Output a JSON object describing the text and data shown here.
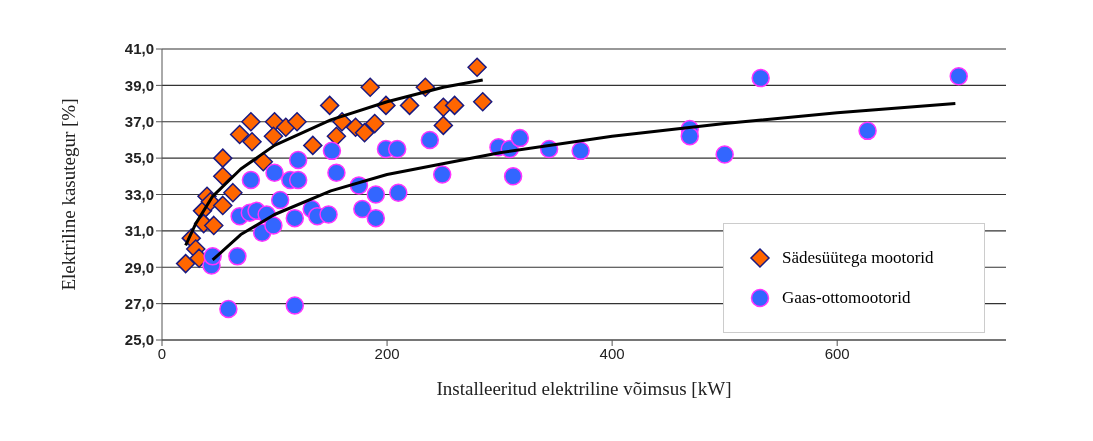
{
  "chart_data": {
    "type": "scatter",
    "xlabel": "Installeeritud elektriline võimsus [kW]",
    "ylabel": "Elektriline kasutegur [%]",
    "xlim": [
      0,
      750
    ],
    "xticks": [
      0,
      200,
      400,
      600
    ],
    "ylim": [
      25,
      41
    ],
    "yticks": [
      {
        "value": 25,
        "label": "25,0"
      },
      {
        "value": 27,
        "label": "27,0"
      },
      {
        "value": 29,
        "label": "29,0"
      },
      {
        "value": 31,
        "label": "31,0"
      },
      {
        "value": 33,
        "label": "33,0"
      },
      {
        "value": 35,
        "label": "35,0"
      },
      {
        "value": 37,
        "label": "37,0"
      },
      {
        "value": 39,
        "label": "39,0"
      },
      {
        "value": 41,
        "label": "41,0"
      }
    ],
    "grid": "y",
    "legend": "bottom right",
    "series": [
      {
        "name": "Sädesüütega mootorid",
        "color": "#ff6600",
        "marker": "diamond",
        "x": [
          21,
          26,
          30,
          33,
          36,
          40,
          37,
          46,
          43,
          54,
          54,
          54,
          63,
          69,
          79,
          80,
          90,
          100,
          99,
          110,
          120,
          134,
          149,
          155,
          160,
          172,
          180,
          189,
          185,
          199,
          220,
          234,
          250,
          260,
          250,
          280,
          285
        ],
        "values": [
          29.2,
          30.6,
          30.0,
          29.5,
          32.1,
          32.9,
          31.4,
          31.3,
          32.6,
          34.0,
          35.0,
          32.4,
          33.1,
          36.3,
          37.0,
          35.9,
          34.8,
          37.0,
          36.2,
          36.7,
          37.0,
          35.7,
          37.9,
          36.2,
          37.0,
          36.7,
          36.4,
          36.9,
          38.9,
          37.9,
          37.9,
          38.9,
          37.8,
          37.9,
          36.8,
          40.0,
          38.1
        ]
      },
      {
        "name": "Gaas-ottomootorid",
        "color": "#3366ff",
        "marker": "circle",
        "x": [
          44,
          45,
          67,
          59,
          118,
          69,
          78,
          84,
          89,
          93,
          99,
          105,
          118,
          133,
          138,
          148,
          79,
          100,
          114,
          121,
          121,
          151,
          155,
          175,
          178,
          190,
          190,
          210,
          199,
          209,
          238,
          249,
          299,
          309,
          312,
          318,
          344,
          372,
          469,
          469,
          500,
          532,
          627,
          708
        ],
        "values": [
          29.1,
          29.6,
          29.6,
          26.7,
          26.9,
          31.8,
          32.0,
          32.1,
          30.9,
          31.9,
          31.3,
          32.7,
          31.7,
          32.2,
          31.8,
          31.9,
          33.8,
          34.2,
          33.8,
          34.9,
          33.8,
          35.4,
          34.2,
          33.5,
          32.2,
          33.0,
          31.7,
          33.1,
          35.5,
          35.5,
          36.0,
          34.1,
          35.6,
          35.5,
          34.0,
          36.1,
          35.5,
          35.4,
          36.6,
          36.2,
          35.2,
          39.4,
          36.5,
          39.5
        ]
      },
      {
        "type": "line",
        "color": "#000000",
        "marker": "none",
        "x": [
          21,
          30,
          45,
          70,
          100,
          150,
          200,
          250,
          285
        ],
        "values": [
          30.2,
          31.4,
          32.9,
          34.4,
          35.7,
          37.1,
          38.1,
          38.9,
          39.3
        ]
      },
      {
        "type": "line",
        "color": "#000000",
        "marker": "none",
        "x": [
          45,
          70,
          100,
          150,
          200,
          300,
          400,
          500,
          600,
          705
        ],
        "values": [
          29.4,
          30.8,
          31.9,
          33.2,
          34.1,
          35.3,
          36.2,
          36.9,
          37.5,
          38.0
        ]
      }
    ]
  }
}
